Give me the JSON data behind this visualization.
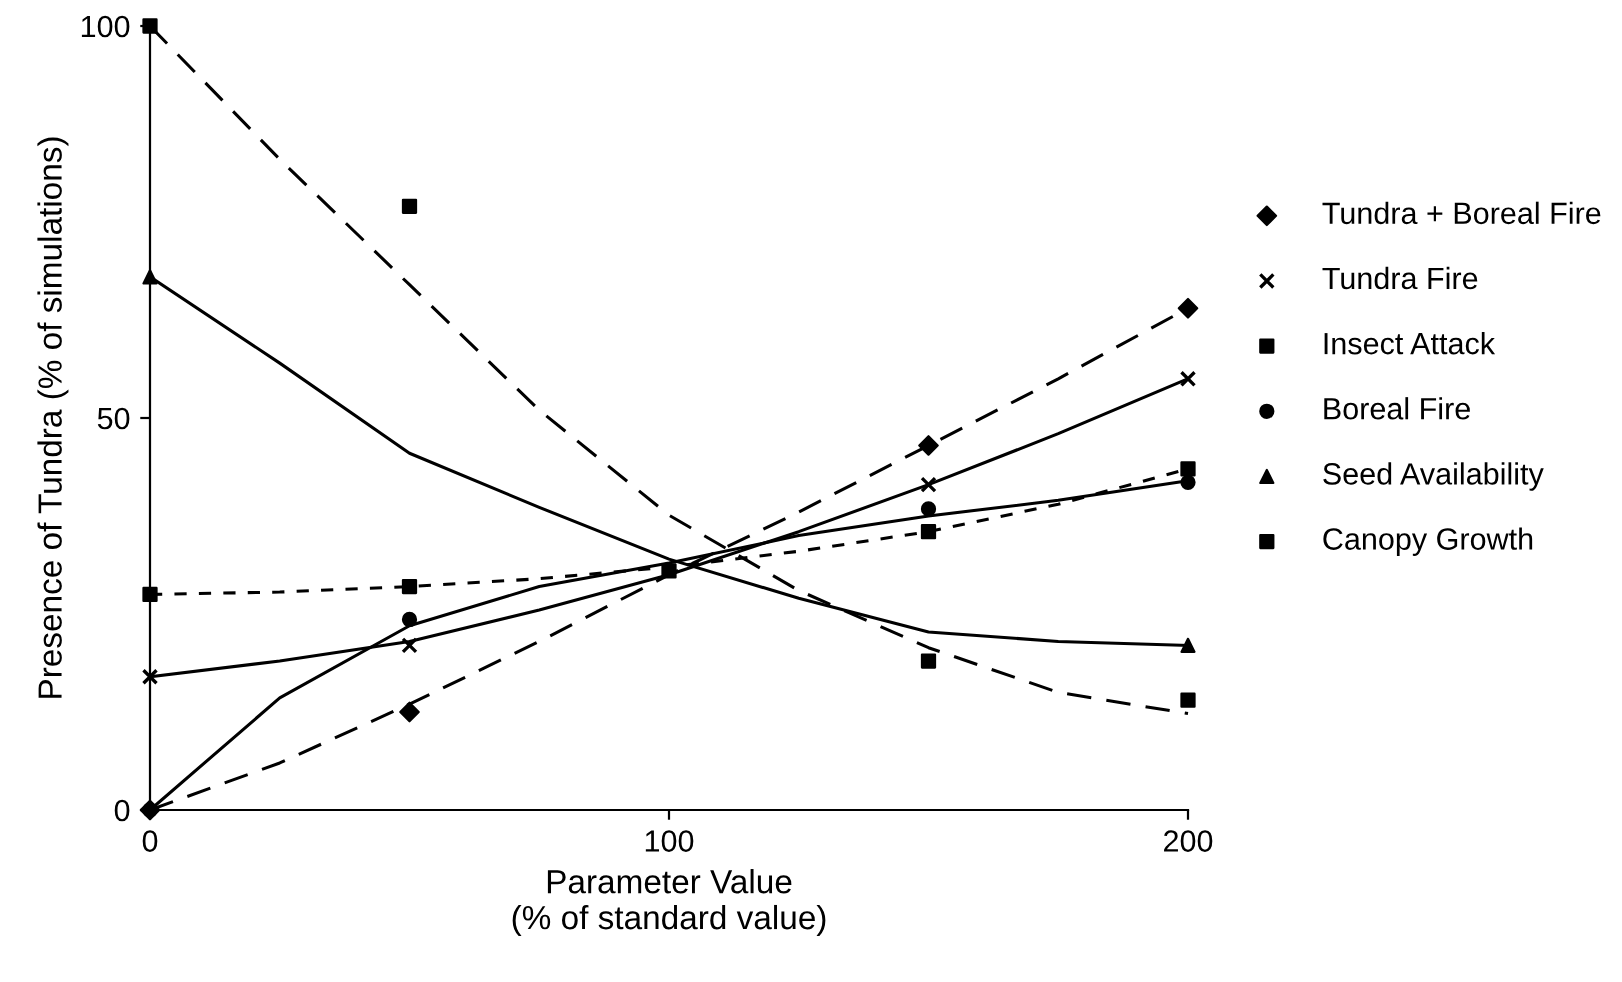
{
  "chart_data": {
    "type": "scatter",
    "xlabel": "Parameter Value\n(% of standard value)",
    "ylabel": "Presence of Tundra (% of simulations)",
    "xlim": [
      0,
      200
    ],
    "ylim": [
      0,
      100
    ],
    "xticks": [
      0,
      100,
      200
    ],
    "yticks": [
      0,
      50,
      100
    ],
    "grid": false,
    "legend": "right",
    "series": [
      {
        "name": "Tundra + Boreal Fire",
        "marker": "diamond",
        "color": "#000000",
        "x": [
          0,
          50,
          150,
          200
        ],
        "values": [
          0,
          12.5,
          46.5,
          64
        ]
      },
      {
        "name": "Tundra Fire",
        "marker": "cross",
        "color": "#000000",
        "x": [
          0,
          50,
          150,
          200
        ],
        "values": [
          17,
          21,
          41.5,
          55
        ]
      },
      {
        "name": "Insect Attack",
        "marker": "square",
        "color": "#000000",
        "x": [
          0,
          50,
          100,
          150,
          200
        ],
        "values": [
          27.5,
          28.5,
          30.5,
          35.5,
          43.5
        ]
      },
      {
        "name": "Boreal Fire",
        "marker": "circle",
        "color": "#000000",
        "x": [
          0,
          50,
          150,
          200
        ],
        "values": [
          0,
          24.3,
          38.4,
          41.8
        ]
      },
      {
        "name": "Seed Availability",
        "marker": "triangle",
        "color": "#000000",
        "x": [
          0,
          200
        ],
        "values": [
          68,
          21
        ]
      },
      {
        "name": "Canopy Growth",
        "marker": "square",
        "color": "#000000",
        "x": [
          0,
          50,
          150,
          200
        ],
        "values": [
          100,
          77,
          19,
          14
        ]
      },
      {
        "type": "line",
        "line_style": "dashed",
        "marker": "none",
        "color": "#000000",
        "x": [
          0,
          25,
          50,
          75,
          100,
          125,
          150,
          175,
          200
        ],
        "values": [
          0,
          6,
          13.5,
          21.5,
          30,
          38,
          46.5,
          55,
          64
        ]
      },
      {
        "type": "line",
        "line_style": "solid",
        "marker": "none",
        "color": "#000000",
        "x": [
          0,
          25,
          50,
          75,
          100,
          125,
          150,
          175,
          200
        ],
        "values": [
          17,
          19,
          21.5,
          25.5,
          30,
          35.5,
          41.5,
          48,
          55
        ]
      },
      {
        "type": "line",
        "line_style": "dotted",
        "marker": "none",
        "color": "#000000",
        "x": [
          0,
          25,
          50,
          75,
          100,
          125,
          150,
          175,
          200
        ],
        "values": [
          27.5,
          27.8,
          28.5,
          29.5,
          31,
          33,
          35.5,
          39,
          43.5
        ]
      },
      {
        "type": "line",
        "line_style": "solid",
        "marker": "none",
        "color": "#000000",
        "x": [
          0,
          25,
          50,
          75,
          100,
          125,
          150,
          175,
          200
        ],
        "values": [
          0,
          14.3,
          23.5,
          28.5,
          31.5,
          35,
          37.5,
          39.5,
          42
        ]
      },
      {
        "type": "line",
        "line_style": "solid",
        "marker": "none",
        "color": "#000000",
        "x": [
          0,
          25,
          50,
          75,
          100,
          125,
          150,
          175,
          200
        ],
        "values": [
          68,
          57,
          45.5,
          38.6,
          32,
          27,
          22.7,
          21.5,
          21
        ]
      },
      {
        "type": "line",
        "line_style": "dashed",
        "marker": "none",
        "color": "#000000",
        "x": [
          0,
          25,
          50,
          75,
          100,
          125,
          150,
          175,
          200
        ],
        "values": [
          100,
          83,
          67,
          51,
          37.6,
          28,
          20.7,
          15,
          12.3
        ]
      }
    ]
  }
}
